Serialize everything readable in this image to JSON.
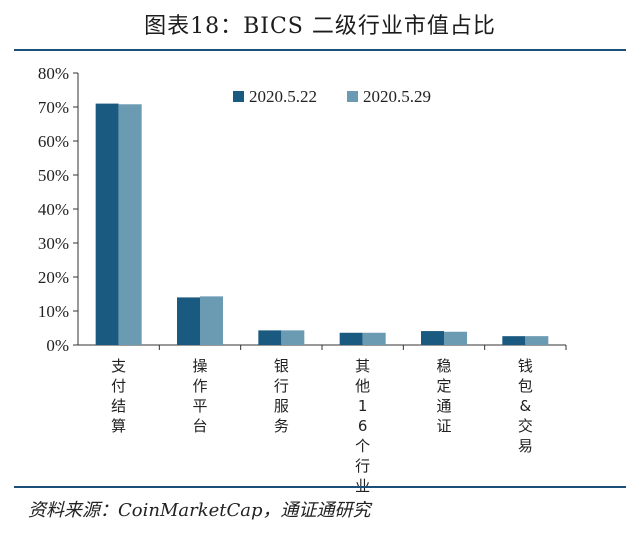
{
  "header": {
    "title": "图表18：BICS 二级行业市值占比"
  },
  "footer": {
    "source": "资料来源：CoinMarketCap，通证通研究"
  },
  "colors": {
    "series1": "#1b5a80",
    "series2": "#6a9bb3",
    "rule": "#1a4f7a"
  },
  "chart_data": {
    "type": "bar",
    "title": "图表18：BICS 二级行业市值占比",
    "xlabel": "",
    "ylabel": "",
    "ylim": [
      0,
      80
    ],
    "yticks": [
      "0%",
      "10%",
      "20%",
      "30%",
      "40%",
      "50%",
      "60%",
      "70%",
      "80%"
    ],
    "legend_position": "top-right",
    "grid": false,
    "categories": [
      "支付结算",
      "操作平台",
      "银行服务",
      "其他16个行业",
      "稳定通证",
      "钱包&交易"
    ],
    "series": [
      {
        "name": "2020.5.22",
        "values": [
          71.0,
          14.0,
          4.3,
          3.6,
          4.1,
          2.6
        ]
      },
      {
        "name": "2020.5.29",
        "values": [
          70.8,
          14.3,
          4.3,
          3.6,
          3.9,
          2.6
        ]
      }
    ]
  }
}
